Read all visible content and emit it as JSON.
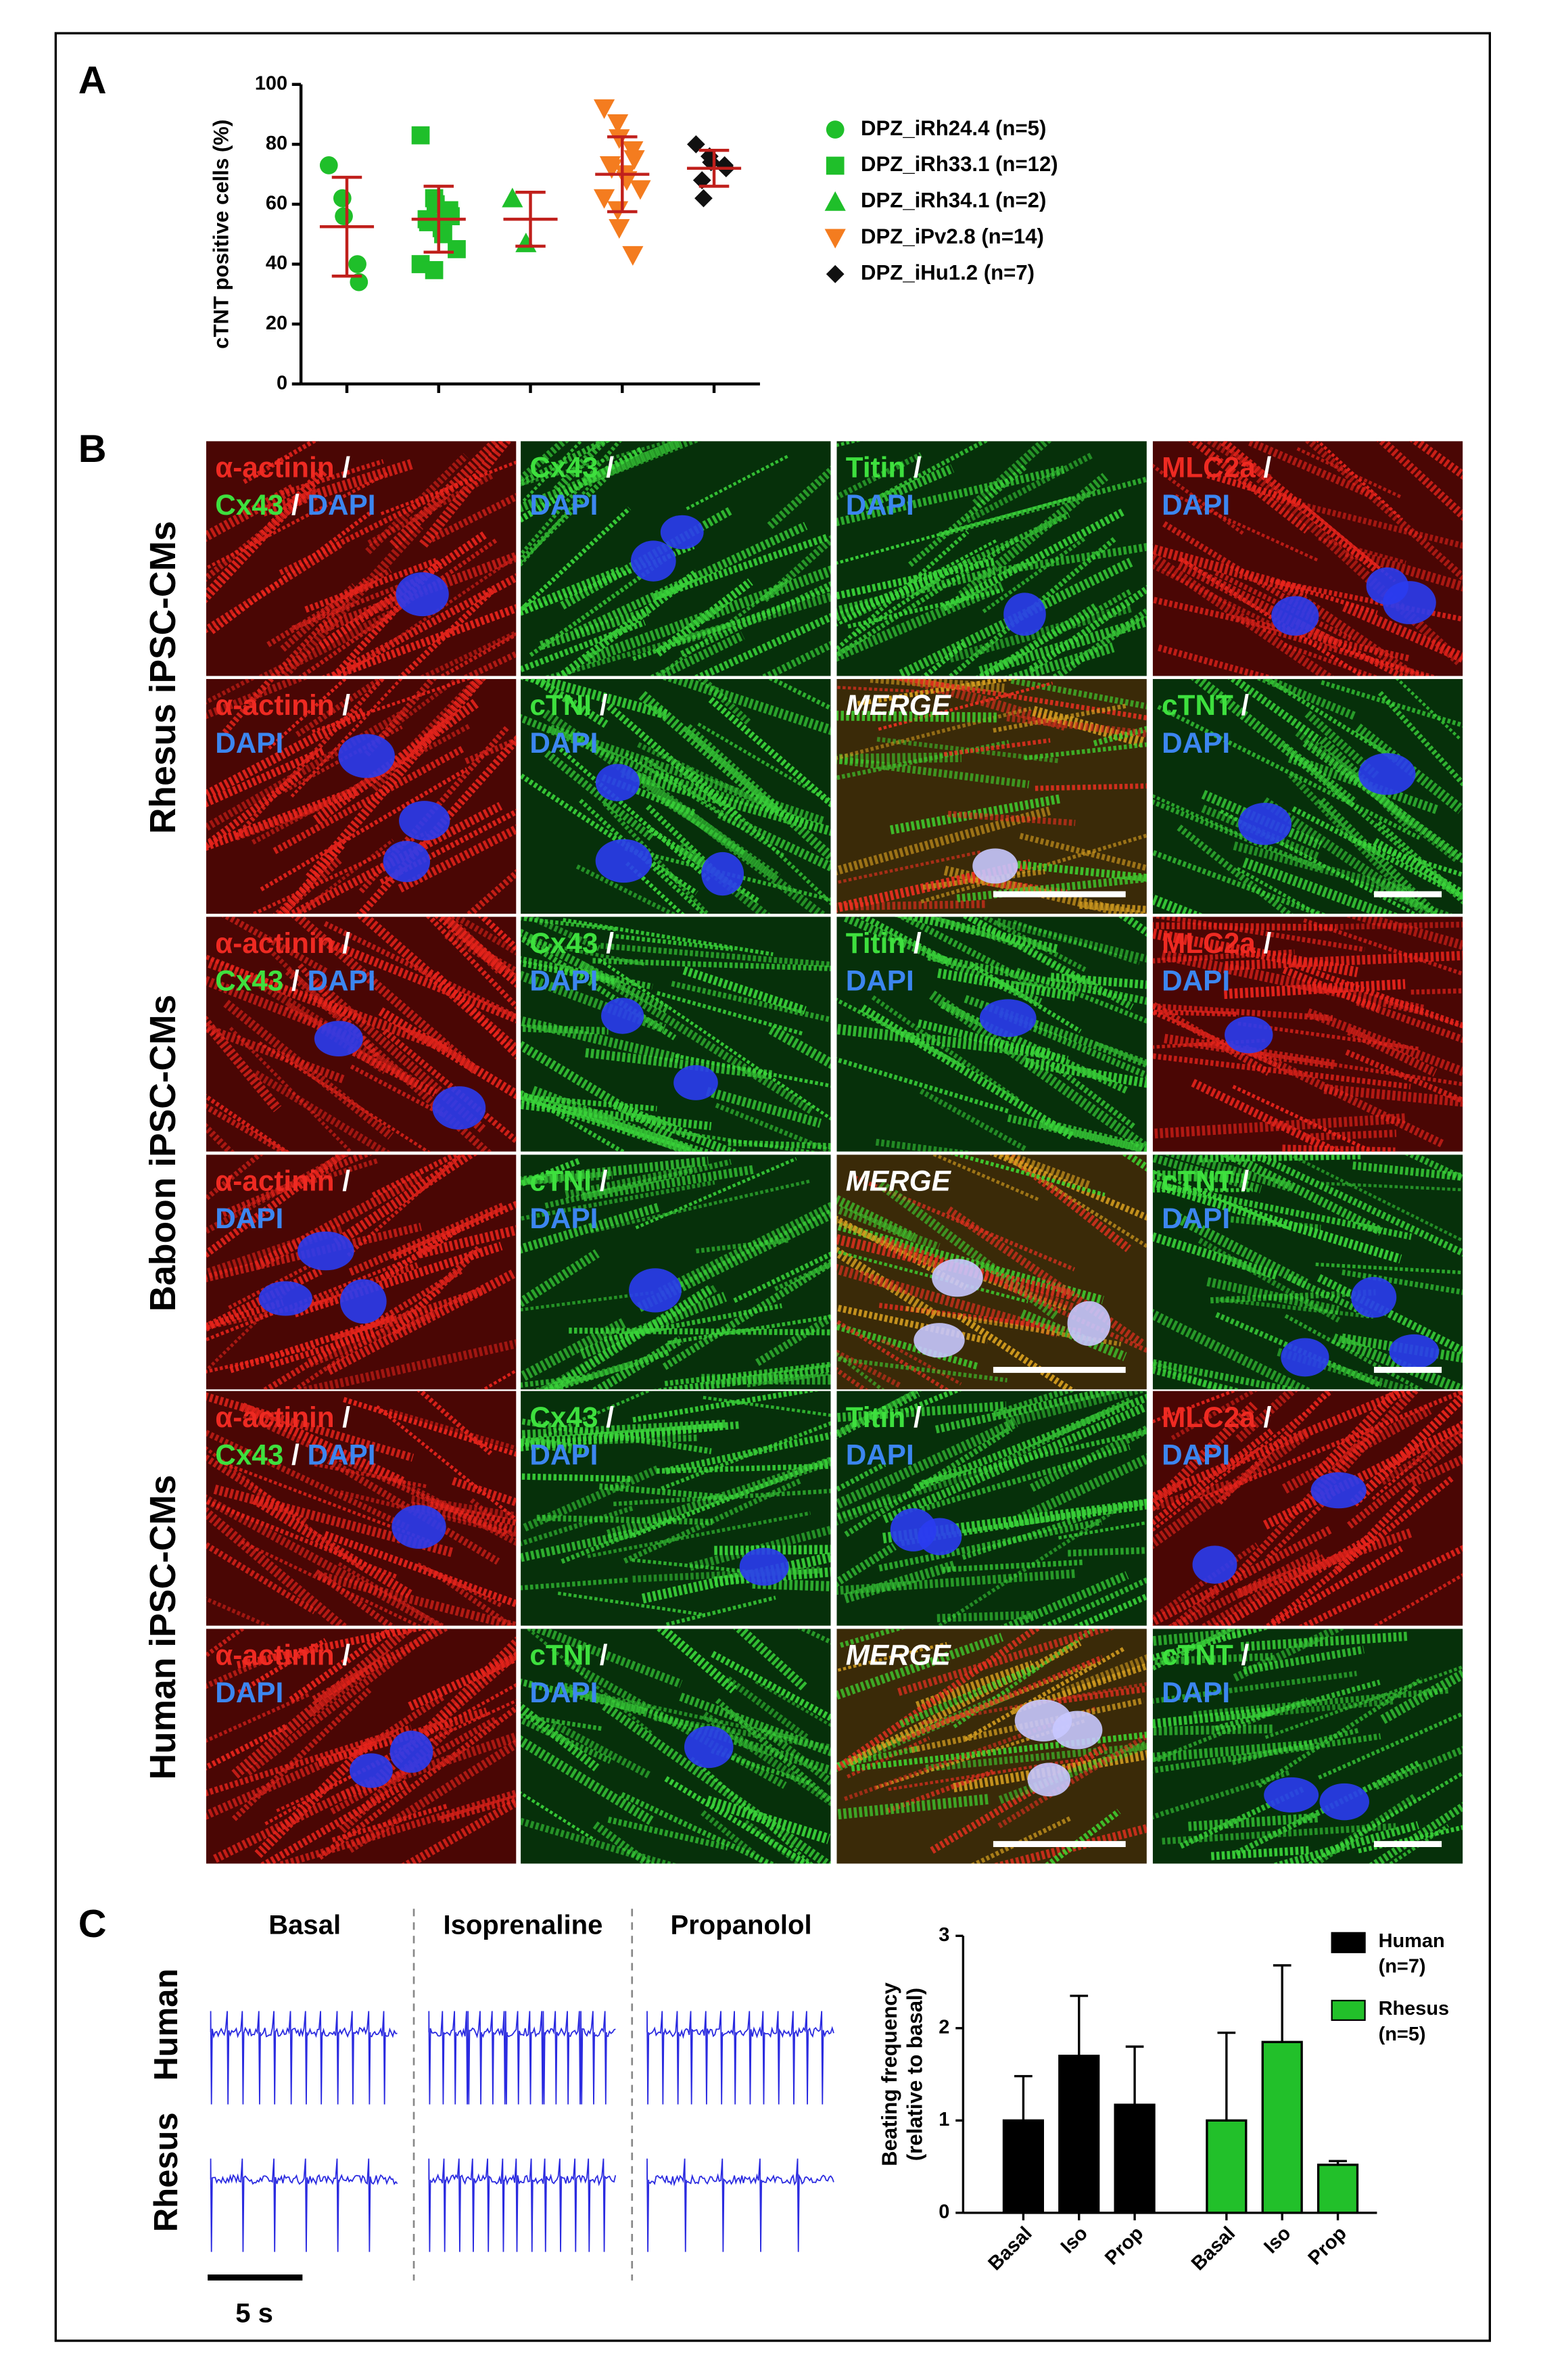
{
  "panel_labels": [
    "A",
    "B",
    "C"
  ],
  "chart_data": [
    {
      "type": "scatter",
      "ylabel": "cTNT positive cells (%)",
      "ylim": [
        0,
        100
      ],
      "yticks": [
        0,
        20,
        40,
        60,
        80,
        100
      ],
      "errorbar_color": "#c0201c",
      "series": [
        {
          "name": "DPZ_iRh24.4 (n=5)",
          "color": "#1fbf2a",
          "marker": "circle",
          "values": [
            73,
            62,
            56,
            40,
            34
          ],
          "mean": 52.5,
          "sd": 16.5
        },
        {
          "name": "DPZ_iRh33.1 (n=12)",
          "color": "#1fbf2a",
          "marker": "square",
          "values": [
            83,
            62,
            60,
            58,
            56,
            55,
            54,
            52,
            50,
            45,
            40,
            38
          ],
          "mean": 55,
          "sd": 11
        },
        {
          "name": "DPZ_iRh34.1 (n=2)",
          "color": "#1fbf2a",
          "marker": "triangle-up",
          "values": [
            62,
            47
          ],
          "mean": 55,
          "sd": 9
        },
        {
          "name": "DPZ_iPv2.8 (n=14)",
          "color": "#f47c1f",
          "marker": "triangle-down",
          "values": [
            92,
            87,
            82,
            78,
            75,
            73,
            72,
            70,
            68,
            65,
            62,
            58,
            52,
            43
          ],
          "mean": 70,
          "sd": 12.5
        },
        {
          "name": "DPZ_iHu1.2 (n=7)",
          "color": "#111111",
          "marker": "diamond",
          "values": [
            80,
            76,
            74,
            73,
            72,
            68,
            62
          ],
          "mean": 72,
          "sd": 6
        }
      ]
    },
    {
      "type": "bar",
      "ylabel": [
        "Beating frequency",
        "(relative to basal)"
      ],
      "categories": [
        "Basal",
        "Iso",
        "Prop"
      ],
      "ylim": [
        0,
        3
      ],
      "yticks": [
        0,
        1,
        2,
        3
      ],
      "series": [
        {
          "name": [
            "Human",
            "(n=7)"
          ],
          "color": "#000000",
          "values": [
            1,
            1.7,
            1.17
          ],
          "errors": [
            0.48,
            0.65,
            0.63
          ]
        },
        {
          "name": [
            "Rhesus",
            "(n=5)"
          ],
          "color": "#22c02a",
          "values": [
            1,
            1.85,
            0.52
          ],
          "errors": [
            0.95,
            0.83,
            0.04
          ]
        }
      ]
    }
  ],
  "micrographs": {
    "groups": [
      "Rhesus iPSC-CMs",
      "Baboon iPSC-CMs",
      "Human iPSC-CMs"
    ],
    "rows": [
      {
        "cells": [
          {
            "lines": [
              [
                {
                  "text": "α-actinin",
                  "color": "#ee2a22"
                },
                {
                  "text": " /",
                  "color": "#ffffff"
                }
              ],
              [
                {
                  "text": "Cx43",
                  "color": "#3ee03e"
                },
                {
                  "text": " / ",
                  "color": "#ffffff"
                },
                {
                  "text": "DAPI",
                  "color": "#3c86f0"
                }
              ]
            ]
          },
          {
            "lines": [
              [
                {
                  "text": "Cx43",
                  "color": "#3ee03e"
                },
                {
                  "text": " /",
                  "color": "#ffffff"
                }
              ],
              [
                {
                  "text": "DAPI",
                  "color": "#3c86f0"
                }
              ]
            ]
          },
          {
            "lines": [
              [
                {
                  "text": "Titin",
                  "color": "#3ee03e"
                },
                {
                  "text": " /",
                  "color": "#ffffff"
                }
              ],
              [
                {
                  "text": "DAPI",
                  "color": "#3c86f0"
                }
              ]
            ]
          },
          {
            "lines": [
              [
                {
                  "text": "MLC2a",
                  "color": "#ee2a22"
                },
                {
                  "text": " /",
                  "color": "#ffffff"
                }
              ],
              [
                {
                  "text": "DAPI",
                  "color": "#3c86f0"
                }
              ]
            ]
          }
        ]
      },
      {
        "cells": [
          {
            "lines": [
              [
                {
                  "text": "α-actinin",
                  "color": "#ee2a22"
                },
                {
                  "text": " /",
                  "color": "#ffffff"
                }
              ],
              [
                {
                  "text": "DAPI",
                  "color": "#3c86f0"
                }
              ]
            ]
          },
          {
            "lines": [
              [
                {
                  "text": "cTNI",
                  "color": "#3ee03e"
                },
                {
                  "text": " /",
                  "color": "#ffffff"
                }
              ],
              [
                {
                  "text": "DAPI",
                  "color": "#3c86f0"
                }
              ]
            ]
          },
          {
            "lines": [
              [
                {
                  "text": "MERGE",
                  "color": "#ffffff",
                  "italic": true
                }
              ]
            ]
          },
          {
            "lines": [
              [
                {
                  "text": "cTNT",
                  "color": "#3ee03e"
                },
                {
                  "text": " /",
                  "color": "#ffffff"
                }
              ],
              [
                {
                  "text": "DAPI",
                  "color": "#3c86f0"
                }
              ]
            ]
          }
        ]
      },
      {
        "cells": [
          {
            "lines": [
              [
                {
                  "text": "α-actinin",
                  "color": "#ee2a22"
                },
                {
                  "text": " /",
                  "color": "#ffffff"
                }
              ],
              [
                {
                  "text": "Cx43",
                  "color": "#3ee03e"
                },
                {
                  "text": " / ",
                  "color": "#ffffff"
                },
                {
                  "text": "DAPI",
                  "color": "#3c86f0"
                }
              ]
            ]
          },
          {
            "lines": [
              [
                {
                  "text": "Cx43",
                  "color": "#3ee03e"
                },
                {
                  "text": " /",
                  "color": "#ffffff"
                }
              ],
              [
                {
                  "text": "DAPI",
                  "color": "#3c86f0"
                }
              ]
            ]
          },
          {
            "lines": [
              [
                {
                  "text": "Titin",
                  "color": "#3ee03e"
                },
                {
                  "text": " /",
                  "color": "#ffffff"
                }
              ],
              [
                {
                  "text": "DAPI",
                  "color": "#3c86f0"
                }
              ]
            ]
          },
          {
            "lines": [
              [
                {
                  "text": "MLC2a",
                  "color": "#ee2a22"
                },
                {
                  "text": " /",
                  "color": "#ffffff"
                }
              ],
              [
                {
                  "text": "DAPI",
                  "color": "#3c86f0"
                }
              ]
            ]
          }
        ]
      },
      {
        "cells": [
          {
            "lines": [
              [
                {
                  "text": "α-actinin",
                  "color": "#ee2a22"
                },
                {
                  "text": " /",
                  "color": "#ffffff"
                }
              ],
              [
                {
                  "text": "DAPI",
                  "color": "#3c86f0"
                }
              ]
            ]
          },
          {
            "lines": [
              [
                {
                  "text": "cTNI",
                  "color": "#3ee03e"
                },
                {
                  "text": " /",
                  "color": "#ffffff"
                }
              ],
              [
                {
                  "text": "DAPI",
                  "color": "#3c86f0"
                }
              ]
            ]
          },
          {
            "lines": [
              [
                {
                  "text": "MERGE",
                  "color": "#ffffff",
                  "italic": true
                }
              ]
            ]
          },
          {
            "lines": [
              [
                {
                  "text": "cTNT",
                  "color": "#3ee03e"
                },
                {
                  "text": " /",
                  "color": "#ffffff"
                }
              ],
              [
                {
                  "text": "DAPI",
                  "color": "#3c86f0"
                }
              ]
            ]
          }
        ]
      },
      {
        "cells": [
          {
            "lines": [
              [
                {
                  "text": "α-actinin",
                  "color": "#ee2a22"
                },
                {
                  "text": " /",
                  "color": "#ffffff"
                }
              ],
              [
                {
                  "text": "Cx43",
                  "color": "#3ee03e"
                },
                {
                  "text": " / ",
                  "color": "#ffffff"
                },
                {
                  "text": "DAPI",
                  "color": "#3c86f0"
                }
              ]
            ]
          },
          {
            "lines": [
              [
                {
                  "text": "Cx43",
                  "color": "#3ee03e"
                },
                {
                  "text": " /",
                  "color": "#ffffff"
                }
              ],
              [
                {
                  "text": "DAPI",
                  "color": "#3c86f0"
                }
              ]
            ]
          },
          {
            "lines": [
              [
                {
                  "text": "Titin",
                  "color": "#3ee03e"
                },
                {
                  "text": " /",
                  "color": "#ffffff"
                }
              ],
              [
                {
                  "text": "DAPI",
                  "color": "#3c86f0"
                }
              ]
            ]
          },
          {
            "lines": [
              [
                {
                  "text": "MLC2a",
                  "color": "#ee2a22"
                },
                {
                  "text": " /",
                  "color": "#ffffff"
                }
              ],
              [
                {
                  "text": "DAPI",
                  "color": "#3c86f0"
                }
              ]
            ]
          }
        ]
      },
      {
        "cells": [
          {
            "lines": [
              [
                {
                  "text": "α-actinin",
                  "color": "#ee2a22"
                },
                {
                  "text": " /",
                  "color": "#ffffff"
                }
              ],
              [
                {
                  "text": "DAPI",
                  "color": "#3c86f0"
                }
              ]
            ]
          },
          {
            "lines": [
              [
                {
                  "text": "cTNI",
                  "color": "#3ee03e"
                },
                {
                  "text": " /",
                  "color": "#ffffff"
                }
              ],
              [
                {
                  "text": "DAPI",
                  "color": "#3c86f0"
                }
              ]
            ]
          },
          {
            "lines": [
              [
                {
                  "text": "MERGE",
                  "color": "#ffffff",
                  "italic": true
                }
              ]
            ]
          },
          {
            "lines": [
              [
                {
                  "text": "cTNT",
                  "color": "#3ee03e"
                },
                {
                  "text": " /",
                  "color": "#ffffff"
                }
              ],
              [
                {
                  "text": "DAPI",
                  "color": "#3c86f0"
                }
              ]
            ]
          }
        ]
      }
    ]
  },
  "traces": {
    "conditions": [
      "Basal",
      "Isoprenaline",
      "Propanolol"
    ],
    "rows": [
      "Human",
      "Rhesus"
    ],
    "scale_bar": "5 s"
  }
}
